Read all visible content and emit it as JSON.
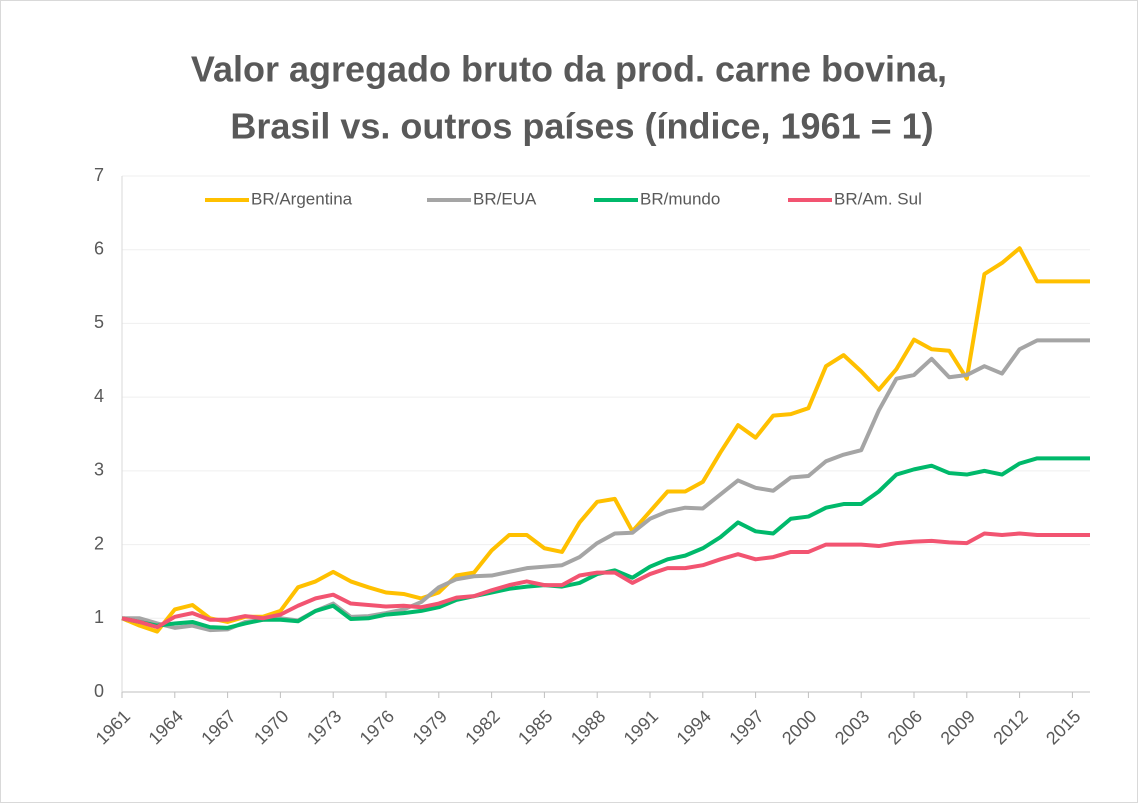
{
  "chart_data": {
    "type": "line",
    "title": [
      "Valor agregado bruto da prod. carne bovina,",
      "Brasil vs. outros países (índice, 1961 = 1)"
    ],
    "x": [
      1961,
      1962,
      1963,
      1964,
      1965,
      1966,
      1967,
      1968,
      1969,
      1970,
      1971,
      1972,
      1973,
      1974,
      1975,
      1976,
      1977,
      1978,
      1979,
      1980,
      1981,
      1982,
      1983,
      1984,
      1985,
      1986,
      1987,
      1988,
      1989,
      1990,
      1991,
      1992,
      1993,
      1994,
      1995,
      1996,
      1997,
      1998,
      1999,
      2000,
      2001,
      2002,
      2003,
      2004,
      2005,
      2006,
      2007,
      2008,
      2009,
      2010,
      2011,
      2012,
      2013,
      2014,
      2015,
      2016
    ],
    "xlim": [
      1961,
      2016
    ],
    "xticks": [
      1961,
      1964,
      1967,
      1970,
      1973,
      1976,
      1979,
      1982,
      1985,
      1988,
      1991,
      1994,
      1997,
      2000,
      2003,
      2006,
      2009,
      2012,
      2015
    ],
    "ylim": [
      0,
      7
    ],
    "yticks": [
      0,
      1,
      2,
      3,
      4,
      5,
      6,
      7
    ],
    "grid": true,
    "legend": "top",
    "series": [
      {
        "name": "BR/Argentina",
        "color": "#ffc000",
        "values": [
          1.0,
          0.9,
          0.82,
          1.12,
          1.18,
          1.0,
          0.95,
          1.02,
          1.02,
          1.1,
          1.42,
          1.5,
          1.63,
          1.5,
          1.42,
          1.35,
          1.33,
          1.27,
          1.35,
          1.58,
          1.62,
          1.92,
          2.13,
          2.13,
          1.95,
          1.9,
          2.3,
          2.58,
          2.62,
          2.18,
          2.45,
          2.72,
          2.72,
          2.85,
          3.25,
          3.62,
          3.45,
          3.75,
          3.77,
          3.85,
          4.42,
          4.57,
          4.35,
          4.1,
          4.38,
          4.78,
          4.65,
          4.63,
          4.25,
          5.67,
          5.82,
          6.02,
          5.57,
          5.57,
          5.57,
          5.57
        ]
      },
      {
        "name": "BR/EUA",
        "color": "#a5a5a5",
        "values": [
          1.0,
          1.0,
          0.93,
          0.87,
          0.9,
          0.84,
          0.85,
          0.95,
          0.98,
          1.0,
          0.97,
          1.1,
          1.2,
          1.02,
          1.03,
          1.07,
          1.12,
          1.22,
          1.42,
          1.53,
          1.57,
          1.58,
          1.63,
          1.68,
          1.7,
          1.72,
          1.83,
          2.02,
          2.15,
          2.16,
          2.35,
          2.45,
          2.5,
          2.49,
          2.68,
          2.87,
          2.77,
          2.73,
          2.91,
          2.93,
          3.13,
          3.22,
          3.28,
          3.82,
          4.25,
          4.3,
          4.52,
          4.27,
          4.3,
          4.42,
          4.32,
          4.65,
          4.77,
          4.77,
          4.77,
          4.77
        ]
      },
      {
        "name": "BR/mundo",
        "color": "#00b96b",
        "values": [
          1.0,
          0.95,
          0.9,
          0.93,
          0.95,
          0.88,
          0.87,
          0.93,
          0.98,
          0.98,
          0.96,
          1.1,
          1.17,
          0.99,
          1.0,
          1.05,
          1.07,
          1.1,
          1.15,
          1.25,
          1.3,
          1.35,
          1.4,
          1.43,
          1.45,
          1.43,
          1.48,
          1.6,
          1.65,
          1.55,
          1.7,
          1.8,
          1.85,
          1.95,
          2.1,
          2.3,
          2.18,
          2.15,
          2.35,
          2.38,
          2.5,
          2.55,
          2.55,
          2.72,
          2.95,
          3.02,
          3.07,
          2.97,
          2.95,
          3.0,
          2.95,
          3.1,
          3.17,
          3.17,
          3.17,
          3.17
        ]
      },
      {
        "name": "BR/Am. Sul",
        "color": "#f25471",
        "values": [
          1.0,
          0.95,
          0.88,
          1.02,
          1.07,
          0.98,
          0.98,
          1.03,
          1.0,
          1.05,
          1.17,
          1.27,
          1.32,
          1.2,
          1.18,
          1.16,
          1.17,
          1.15,
          1.2,
          1.28,
          1.3,
          1.38,
          1.45,
          1.5,
          1.45,
          1.45,
          1.58,
          1.62,
          1.62,
          1.48,
          1.6,
          1.68,
          1.68,
          1.72,
          1.8,
          1.87,
          1.8,
          1.83,
          1.9,
          1.9,
          2.0,
          2.0,
          2.0,
          1.98,
          2.02,
          2.04,
          2.05,
          2.03,
          2.02,
          2.15,
          2.13,
          2.15,
          2.13,
          2.13,
          2.13,
          2.13
        ]
      }
    ]
  }
}
